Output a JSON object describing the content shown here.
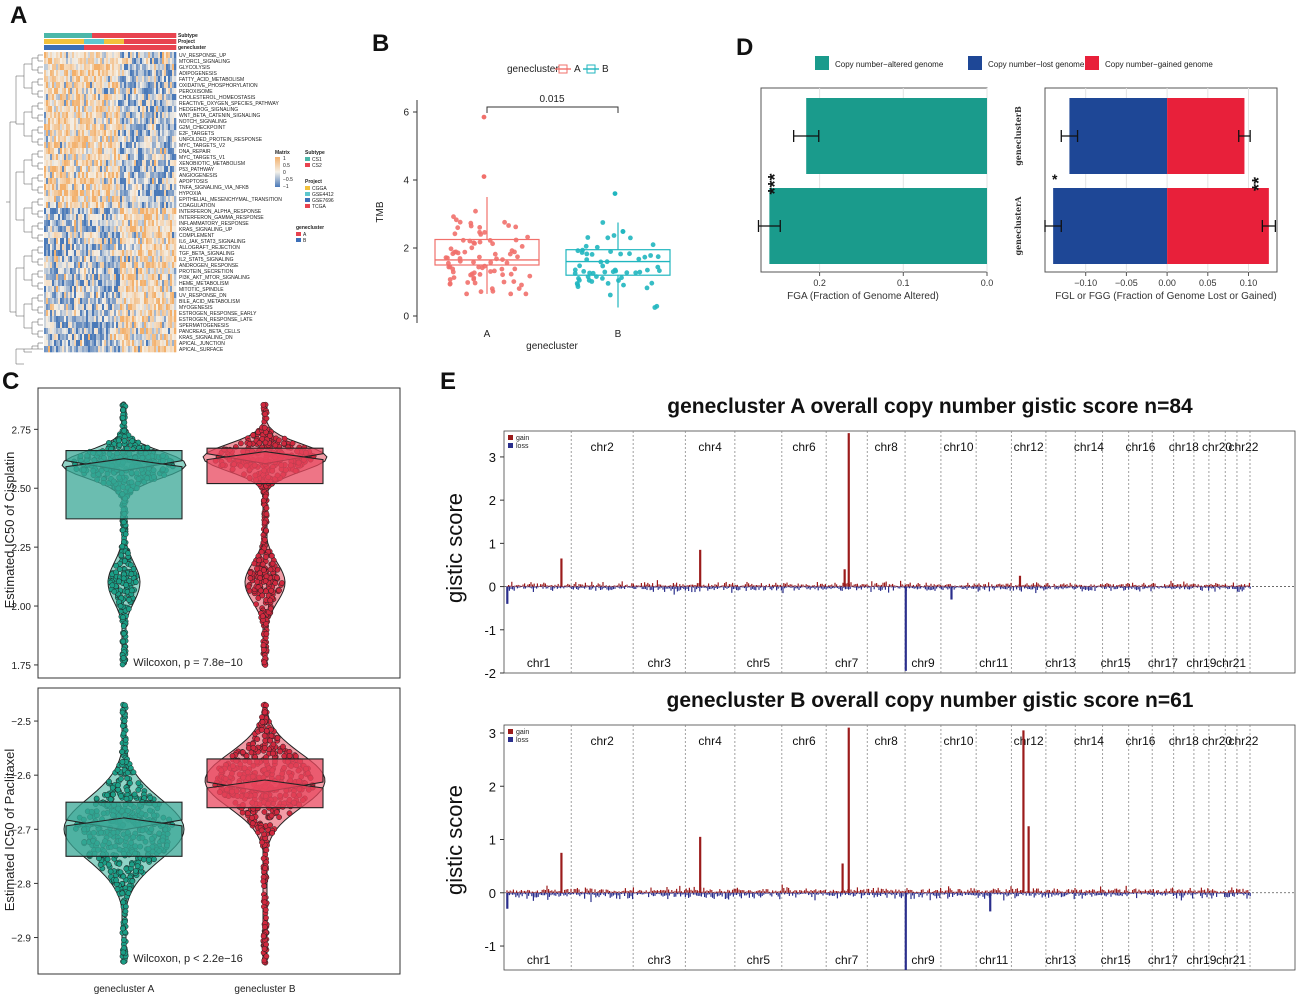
{
  "panel_letters": {
    "a": "A",
    "b": "B",
    "c": "C",
    "d": "D",
    "e": "E"
  },
  "colors": {
    "teal": "#1a9b8c",
    "red": "#e8203a",
    "navy": "#1e4796",
    "box_a": "#f1706b",
    "box_b": "#20b6bf",
    "violin_a": "#7dcdbd",
    "violin_b": "#f08b96",
    "gain": "#9b1b1b",
    "loss": "#2a2e8c",
    "hm_low": "#4a79b8",
    "hm_high": "#f3b06b"
  },
  "chart_data": [
    {
      "id": "A",
      "type": "heatmap",
      "annotation_rows": [
        "Subtype",
        "Project",
        "genecluster"
      ],
      "row_labels": [
        "UV_RESPONSE_UP",
        "MTORC1_SIGNALING",
        "GLYCOLYSIS",
        "ADIPOGENESIS",
        "FATTY_ACID_METABOLISM",
        "OXIDATIVE_PHOSPHORYLATION",
        "PEROXISOME",
        "CHOLESTEROL_HOMEOSTASIS",
        "REACTIVE_OXYGEN_SPECIES_PATHWAY",
        "HEDGEHOG_SIGNALING",
        "WNT_BETA_CATENIN_SIGNALING",
        "NOTCH_SIGNALING",
        "G2M_CHECKPOINT",
        "E2F_TARGETS",
        "UNFOLDED_PROTEIN_RESPONSE",
        "MYC_TARGETS_V2",
        "DNA_REPAIR",
        "MYC_TARGETS_V1",
        "XENOBIOTIC_METABOLISM",
        "P53_PATHWAY",
        "ANGIOGENESIS",
        "APOPTOSIS",
        "TNFA_SIGNALING_VIA_NFKB",
        "HYPOXIA",
        "EPITHELIAL_MESENCHYMAL_TRANSITION",
        "COAGULATION",
        "INTERFERON_ALPHA_RESPONSE",
        "INTERFERON_GAMMA_RESPONSE",
        "INFLAMMATORY_RESPONSE",
        "KRAS_SIGNALING_UP",
        "COMPLEMENT",
        "IL6_JAK_STAT3_SIGNALING",
        "ALLOGRAFT_REJECTION",
        "TGF_BETA_SIGNALING",
        "IL2_STAT5_SIGNALING",
        "ANDROGEN_RESPONSE",
        "PROTEIN_SECRETION",
        "PI3K_AKT_MTOR_SIGNALING",
        "HEME_METABOLISM",
        "MITOTIC_SPINDLE",
        "UV_RESPONSE_DN",
        "BILE_ACID_METABOLISM",
        "MYOGENESIS",
        "ESTROGEN_RESPONSE_EARLY",
        "ESTROGEN_RESPONSE_LATE",
        "SPERMATOGENESIS",
        "PANCREAS_BETA_CELLS",
        "KRAS_SIGNALING_DN",
        "APICAL_JUNCTION",
        "APICAL_SURFACE"
      ],
      "legend": {
        "matrix_title": "Matrix",
        "matrix_ticks": [
          "1",
          "0.5",
          "0",
          "−0.5",
          "−1"
        ],
        "subtype_title": "Subtype",
        "subtype": [
          {
            "label": "CS1",
            "color": "#4bb7a9"
          },
          {
            "label": "CS2",
            "color": "#e8434f"
          }
        ],
        "project_title": "Project",
        "project": [
          {
            "label": "CGGA",
            "color": "#f2c13c"
          },
          {
            "label": "GSE4412",
            "color": "#5ec7ce"
          },
          {
            "label": "GSE7696",
            "color": "#3c6fb8"
          },
          {
            "label": "TCGA",
            "color": "#e8434f"
          }
        ],
        "cluster_title": "genecluster",
        "cluster": [
          {
            "label": "A",
            "color": "#e8434f"
          },
          {
            "label": "B",
            "color": "#3c6fb8"
          }
        ]
      }
    },
    {
      "id": "B",
      "type": "box",
      "legend_title": "genecluster",
      "legend_labels": [
        "A",
        "B"
      ],
      "ylabel": "TMB",
      "xlabel": "genecluster",
      "categories": [
        "A",
        "B"
      ],
      "ylim": [
        0,
        6
      ],
      "yticks": [
        0,
        2,
        4,
        6
      ],
      "pvalue": "0.015",
      "boxes": [
        {
          "name": "A",
          "q1": 1.5,
          "median": 1.65,
          "q3": 2.25,
          "whisker_low": 0.65,
          "whisker_high": 3.5,
          "outliers": [
            5.85,
            4.1
          ]
        },
        {
          "name": "B",
          "q1": 1.2,
          "median": 1.6,
          "q3": 1.95,
          "whisker_low": 0.25,
          "whisker_high": 2.75,
          "outliers": [
            3.6
          ]
        }
      ]
    },
    {
      "id": "D1",
      "type": "bar",
      "orientation": "horizontal",
      "legend": [
        "Copy number−altered genome",
        "Copy number−lost genome",
        "Copy number−gained genome"
      ],
      "xlabel": "FGA (Fraction of Genome Altered)",
      "categories": [
        "geneclusterB",
        "geneclusterA"
      ],
      "values": [
        0.216,
        0.26
      ],
      "errors": [
        0.015,
        0.013
      ],
      "xlim": [
        0.27,
        0.0
      ],
      "xticks": [
        "0.2",
        "0.1",
        "0.0"
      ],
      "significance": "***"
    },
    {
      "id": "D2",
      "type": "bar",
      "orientation": "horizontal",
      "xlabel": "FGL or FGG (Fraction of Genome Lost or Gained)",
      "categories": [
        "geneclusterB",
        "geneclusterA"
      ],
      "series": [
        {
          "name": "lost",
          "values": [
            -0.12,
            -0.14
          ],
          "errors": [
            0.01,
            0.01
          ]
        },
        {
          "name": "gained",
          "values": [
            0.095,
            0.125
          ],
          "errors": [
            0.007,
            0.008
          ]
        }
      ],
      "xlim": [
        -0.15,
        0.135
      ],
      "xticks": [
        "−0.10",
        "−0.05",
        "0.00",
        "0.05",
        "0.10"
      ],
      "significance_lost": "*",
      "significance_gained": "**"
    },
    {
      "id": "C1",
      "type": "violin",
      "ylabel": "Estimated IC50 of Cisplatin",
      "ylim": [
        1.72,
        2.9
      ],
      "yticks": [
        "1.75",
        "2.00",
        "2.25",
        "2.50",
        "2.75"
      ],
      "categories": [
        "geneclusterA",
        "geneclusterB"
      ],
      "boxes": [
        {
          "name": "A",
          "q1": 2.37,
          "median": 2.6,
          "q3": 2.66
        },
        {
          "name": "B",
          "q1": 2.52,
          "median": 2.63,
          "q3": 2.67
        }
      ],
      "stat": "Wilcoxon, p = 7.8e−10"
    },
    {
      "id": "C2",
      "type": "violin",
      "ylabel": "Estimated IC50 of Paclitaxel",
      "ylim": [
        -2.96,
        -2.45
      ],
      "yticks": [
        "−2.9",
        "−2.8",
        "−2.7",
        "−2.6",
        "−2.5"
      ],
      "categories": [
        "geneclusterA",
        "geneclusterB"
      ],
      "xtick_labels": [
        "genecluster A",
        "genecluster B"
      ],
      "boxes": [
        {
          "name": "A",
          "q1": -2.75,
          "median": -2.69,
          "q3": -2.65
        },
        {
          "name": "B",
          "q1": -2.66,
          "median": -2.62,
          "q3": -2.57
        }
      ],
      "stat": "Wilcoxon, p < 2.2e−16"
    },
    {
      "id": "E1",
      "type": "bar",
      "title": "genecluster A overall copy number gistic score n=84",
      "ylabel": "gistic score",
      "ylim": [
        -2,
        3.6
      ],
      "yticks": [
        3,
        2,
        1,
        0,
        -1,
        -2
      ],
      "legend": [
        "gain",
        "loss"
      ],
      "chromosomes_top": [
        "chr2",
        "chr4",
        "chr6",
        "chr8",
        "chr10",
        "chr12",
        "chr14",
        "chr16",
        "chr18",
        "chr20",
        "chr22"
      ],
      "chromosomes_bottom": [
        "chr1",
        "chr3",
        "chr5",
        "chr7",
        "chr9",
        "chr11",
        "chr13",
        "chr15",
        "chr17",
        "chr19",
        "chr21"
      ],
      "gain_peaks": [
        {
          "chr": 1,
          "pos": 0.85,
          "value": 0.65
        },
        {
          "chr": 4,
          "pos": 0.3,
          "value": 0.85
        },
        {
          "chr": 7,
          "pos": 0.55,
          "value": 3.55
        },
        {
          "chr": 7,
          "pos": 0.45,
          "value": 0.4
        },
        {
          "chr": 12,
          "pos": 0.25,
          "value": 0.25
        }
      ],
      "loss_peaks": [
        {
          "chr": 9,
          "pos": 0.02,
          "value": -1.95
        },
        {
          "chr": 1,
          "pos": 0.02,
          "value": -0.4
        },
        {
          "chr": 10,
          "pos": 0.3,
          "value": -0.3
        }
      ]
    },
    {
      "id": "E2",
      "type": "bar",
      "title": "genecluster B overall copy number gistic score n=61",
      "ylabel": "gistic score",
      "ylim": [
        -1.45,
        3.15
      ],
      "yticks": [
        3,
        2,
        1,
        0,
        -1
      ],
      "legend": [
        "gain",
        "loss"
      ],
      "chromosomes_top": [
        "chr2",
        "chr4",
        "chr6",
        "chr8",
        "chr10",
        "chr12",
        "chr14",
        "chr16",
        "chr18",
        "chr20",
        "chr22"
      ],
      "chromosomes_bottom": [
        "chr1",
        "chr3",
        "chr5",
        "chr7",
        "chr9",
        "chr11",
        "chr13",
        "chr15",
        "chr17",
        "chr19",
        "chr21"
      ],
      "gain_peaks": [
        {
          "chr": 1,
          "pos": 0.85,
          "value": 0.75
        },
        {
          "chr": 4,
          "pos": 0.3,
          "value": 1.05
        },
        {
          "chr": 7,
          "pos": 0.55,
          "value": 3.1
        },
        {
          "chr": 7,
          "pos": 0.4,
          "value": 0.55
        },
        {
          "chr": 12,
          "pos": 0.35,
          "value": 3.05
        },
        {
          "chr": 12,
          "pos": 0.5,
          "value": 1.25
        }
      ],
      "loss_peaks": [
        {
          "chr": 9,
          "pos": 0.02,
          "value": -1.45
        },
        {
          "chr": 1,
          "pos": 0.02,
          "value": -0.3
        },
        {
          "chr": 11,
          "pos": 0.4,
          "value": -0.35
        }
      ]
    }
  ]
}
